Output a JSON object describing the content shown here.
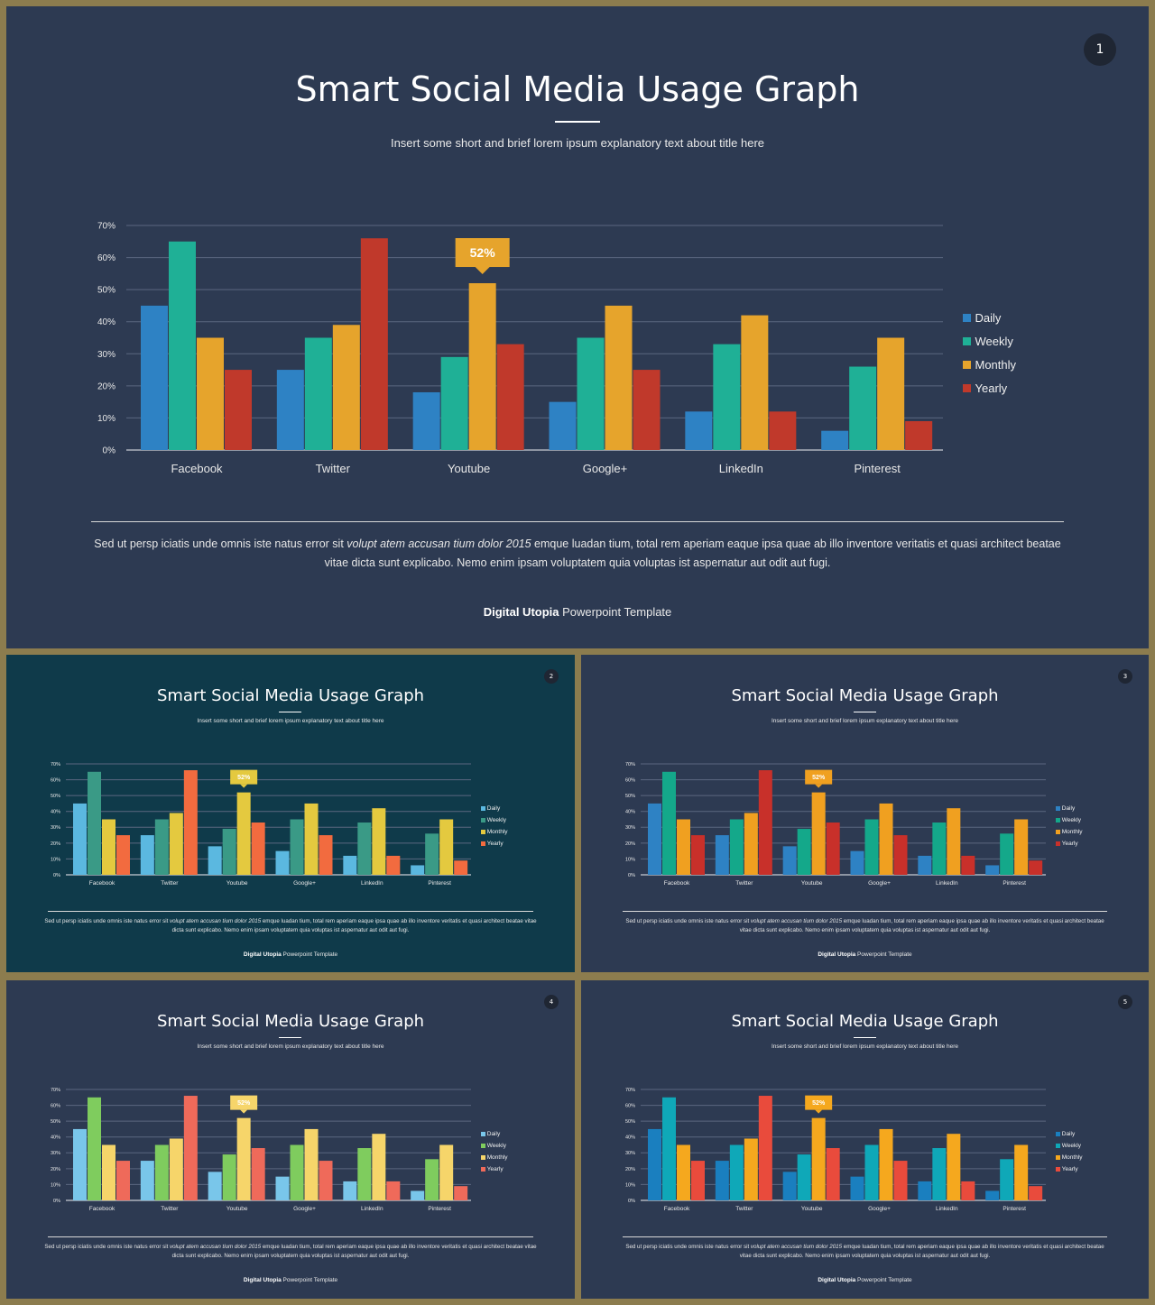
{
  "chart_data": [
    {
      "slide_number": "1",
      "type": "bar",
      "title": "Smart Social Media Usage Graph",
      "subtitle": "Insert some short and brief lorem ipsum explanatory text about title here",
      "categories": [
        "Facebook",
        "Twitter",
        "Youtube",
        "Google+",
        "LinkedIn",
        "Pinterest"
      ],
      "series": [
        {
          "name": "Daily",
          "values": [
            45,
            25,
            18,
            15,
            12,
            6
          ]
        },
        {
          "name": "Weekly",
          "values": [
            65,
            35,
            29,
            35,
            33,
            26
          ]
        },
        {
          "name": "Monthly",
          "values": [
            35,
            39,
            52,
            45,
            42,
            35
          ]
        },
        {
          "name": "Yearly",
          "values": [
            25,
            66,
            33,
            25,
            12,
            9
          ]
        }
      ],
      "y_ticks": [
        "0%",
        "10%",
        "20%",
        "30%",
        "40%",
        "50%",
        "60%",
        "70%"
      ],
      "ylim": [
        0,
        70
      ],
      "grid": true,
      "legend": "right",
      "callout": {
        "label": "52%",
        "category": "Youtube",
        "series": "Monthly"
      },
      "colors": [
        "#2e82c4",
        "#1fb096",
        "#e6a42c",
        "#c0392b"
      ],
      "callout_color": "#e6a42c",
      "background": "#2d3a52",
      "body": {
        "part1": "Sed ut persp iciatis unde omnis iste natus error sit ",
        "italic": "volupt atem accusan tium dolor 2015",
        "part2": " emque luadan tium, total rem aperiam eaque ipsa quae ab illo inventore veritatis et quasi architect beatae vitae dicta sunt explicabo. Nemo enim ipsam voluptatem quia voluptas ist aspernatur aut odit aut fugi."
      },
      "footer": {
        "brand": "Digital Utopia",
        "rest": " Powerpoint Template"
      }
    },
    {
      "slide_number": "2",
      "type": "bar",
      "title": "Smart Social Media Usage Graph",
      "subtitle": "Insert some short and brief lorem ipsum explanatory text about title here",
      "categories": [
        "Facebook",
        "Twitter",
        "Youtube",
        "Google+",
        "LinkedIn",
        "Pinterest"
      ],
      "series": [
        {
          "name": "Daily",
          "values": [
            45,
            25,
            18,
            15,
            12,
            6
          ]
        },
        {
          "name": "Weekly",
          "values": [
            65,
            35,
            29,
            35,
            33,
            26
          ]
        },
        {
          "name": "Monthly",
          "values": [
            35,
            39,
            52,
            45,
            42,
            35
          ]
        },
        {
          "name": "Yearly",
          "values": [
            25,
            66,
            33,
            25,
            12,
            9
          ]
        }
      ],
      "y_ticks": [
        "0%",
        "10%",
        "20%",
        "30%",
        "40%",
        "50%",
        "60%",
        "70%"
      ],
      "ylim": [
        0,
        70
      ],
      "grid": true,
      "legend": "right",
      "callout": {
        "label": "52%",
        "category": "Youtube",
        "series": "Monthly"
      },
      "colors": [
        "#5bb8e0",
        "#3a9a86",
        "#e4c93f",
        "#f26b3f"
      ],
      "callout_color": "#e4c93f",
      "background": "#0f3a4a",
      "body": {
        "part1": "Sed ut persp iciatis unde omnis iste natus error sit ",
        "italic": "volupt atem accusan tium dolor 2015",
        "part2": " emque luadan tium, total rem aperiam eaque ipsa quae ab illo inventore veritatis et quasi architect beatae vitae dicta sunt explicabo. Nemo enim ipsam voluptatem quia voluptas ist aspernatur aut odit aut fugi."
      },
      "footer": {
        "brand": "Digital Utopia",
        "rest": " Powerpoint Template"
      }
    },
    {
      "slide_number": "3",
      "type": "bar",
      "title": "Smart Social Media Usage Graph",
      "subtitle": "Insert some short and brief lorem ipsum explanatory text about title here",
      "categories": [
        "Facebook",
        "Twitter",
        "Youtube",
        "Google+",
        "LinkedIn",
        "Pinterest"
      ],
      "series": [
        {
          "name": "Daily",
          "values": [
            45,
            25,
            18,
            15,
            12,
            6
          ]
        },
        {
          "name": "Weekly",
          "values": [
            65,
            35,
            29,
            35,
            33,
            26
          ]
        },
        {
          "name": "Monthly",
          "values": [
            35,
            39,
            52,
            45,
            42,
            35
          ]
        },
        {
          "name": "Yearly",
          "values": [
            25,
            66,
            33,
            25,
            12,
            9
          ]
        }
      ],
      "y_ticks": [
        "0%",
        "10%",
        "20%",
        "30%",
        "40%",
        "50%",
        "60%",
        "70%"
      ],
      "ylim": [
        0,
        70
      ],
      "grid": true,
      "legend": "right",
      "callout": {
        "label": "52%",
        "category": "Youtube",
        "series": "Monthly"
      },
      "colors": [
        "#2e82c4",
        "#14a88a",
        "#f0a020",
        "#c8302a"
      ],
      "callout_color": "#f0a020",
      "background": "#2d3a52",
      "body": {
        "part1": "Sed ut persp iciatis unde omnis iste natus error sit ",
        "italic": "volupt atem accusan tium dolor 2015",
        "part2": " emque luadan tium, total rem aperiam eaque ipsa quae ab illo inventore veritatis et quasi architect beatae vitae dicta sunt explicabo. Nemo enim ipsam voluptatem quia voluptas ist aspernatur aut odit aut fugi."
      },
      "footer": {
        "brand": "Digital Utopia",
        "rest": " Powerpoint Template"
      }
    },
    {
      "slide_number": "4",
      "type": "bar",
      "title": "Smart Social Media Usage Graph",
      "subtitle": "Insert some short and brief lorem ipsum explanatory text about title here",
      "categories": [
        "Facebook",
        "Twitter",
        "Youtube",
        "Google+",
        "LinkedIn",
        "Pinterest"
      ],
      "series": [
        {
          "name": "Daily",
          "values": [
            45,
            25,
            18,
            15,
            12,
            6
          ]
        },
        {
          "name": "Weekly",
          "values": [
            65,
            35,
            29,
            35,
            33,
            26
          ]
        },
        {
          "name": "Monthly",
          "values": [
            35,
            39,
            52,
            45,
            42,
            35
          ]
        },
        {
          "name": "Yearly",
          "values": [
            25,
            66,
            33,
            25,
            12,
            9
          ]
        }
      ],
      "y_ticks": [
        "0%",
        "10%",
        "20%",
        "30%",
        "40%",
        "50%",
        "60%",
        "70%"
      ],
      "ylim": [
        0,
        70
      ],
      "grid": true,
      "legend": "right",
      "callout": {
        "label": "52%",
        "category": "Youtube",
        "series": "Monthly"
      },
      "colors": [
        "#79c6ea",
        "#7fcc5e",
        "#f6d56a",
        "#ef6a5a"
      ],
      "callout_color": "#f6d56a",
      "background": "#2d3a52",
      "body": {
        "part1": "Sed ut persp iciatis unde omnis iste natus error sit ",
        "italic": "volupt atem accusan tium dolor 2015",
        "part2": " emque luadan tium, total rem aperiam eaque ipsa quae ab illo inventore veritatis et quasi architect beatae vitae dicta sunt explicabo. Nemo enim ipsam voluptatem quia voluptas ist aspernatur aut odit aut fugi."
      },
      "footer": {
        "brand": "Digital Utopia",
        "rest": " Powerpoint Template"
      }
    },
    {
      "slide_number": "5",
      "type": "bar",
      "title": "Smart Social Media Usage Graph",
      "subtitle": "Insert some short and brief lorem ipsum explanatory text about title here",
      "categories": [
        "Facebook",
        "Twitter",
        "Youtube",
        "Google+",
        "LinkedIn",
        "Pinterest"
      ],
      "series": [
        {
          "name": "Daily",
          "values": [
            45,
            25,
            18,
            15,
            12,
            6
          ]
        },
        {
          "name": "Weekly",
          "values": [
            65,
            35,
            29,
            35,
            33,
            26
          ]
        },
        {
          "name": "Monthly",
          "values": [
            35,
            39,
            52,
            45,
            42,
            35
          ]
        },
        {
          "name": "Yearly",
          "values": [
            25,
            66,
            33,
            25,
            12,
            9
          ]
        }
      ],
      "y_ticks": [
        "0%",
        "10%",
        "20%",
        "30%",
        "40%",
        "50%",
        "60%",
        "70%"
      ],
      "ylim": [
        0,
        70
      ],
      "grid": true,
      "legend": "right",
      "callout": {
        "label": "52%",
        "category": "Youtube",
        "series": "Monthly"
      },
      "colors": [
        "#1a7fbf",
        "#0fa8b8",
        "#f5a81e",
        "#e94b3c"
      ],
      "callout_color": "#f5a81e",
      "background": "#2d3a52",
      "body": {
        "part1": "Sed ut persp iciatis unde omnis iste natus error sit ",
        "italic": "volupt atem accusan tium dolor 2015",
        "part2": " emque luadan tium, total rem aperiam eaque ipsa quae ab illo inventore veritatis et quasi architect beatae vitae dicta sunt explicabo. Nemo enim ipsam voluptatem quia voluptas ist aspernatur aut odit aut fugi."
      },
      "footer": {
        "brand": "Digital Utopia",
        "rest": " Powerpoint Template"
      }
    }
  ]
}
